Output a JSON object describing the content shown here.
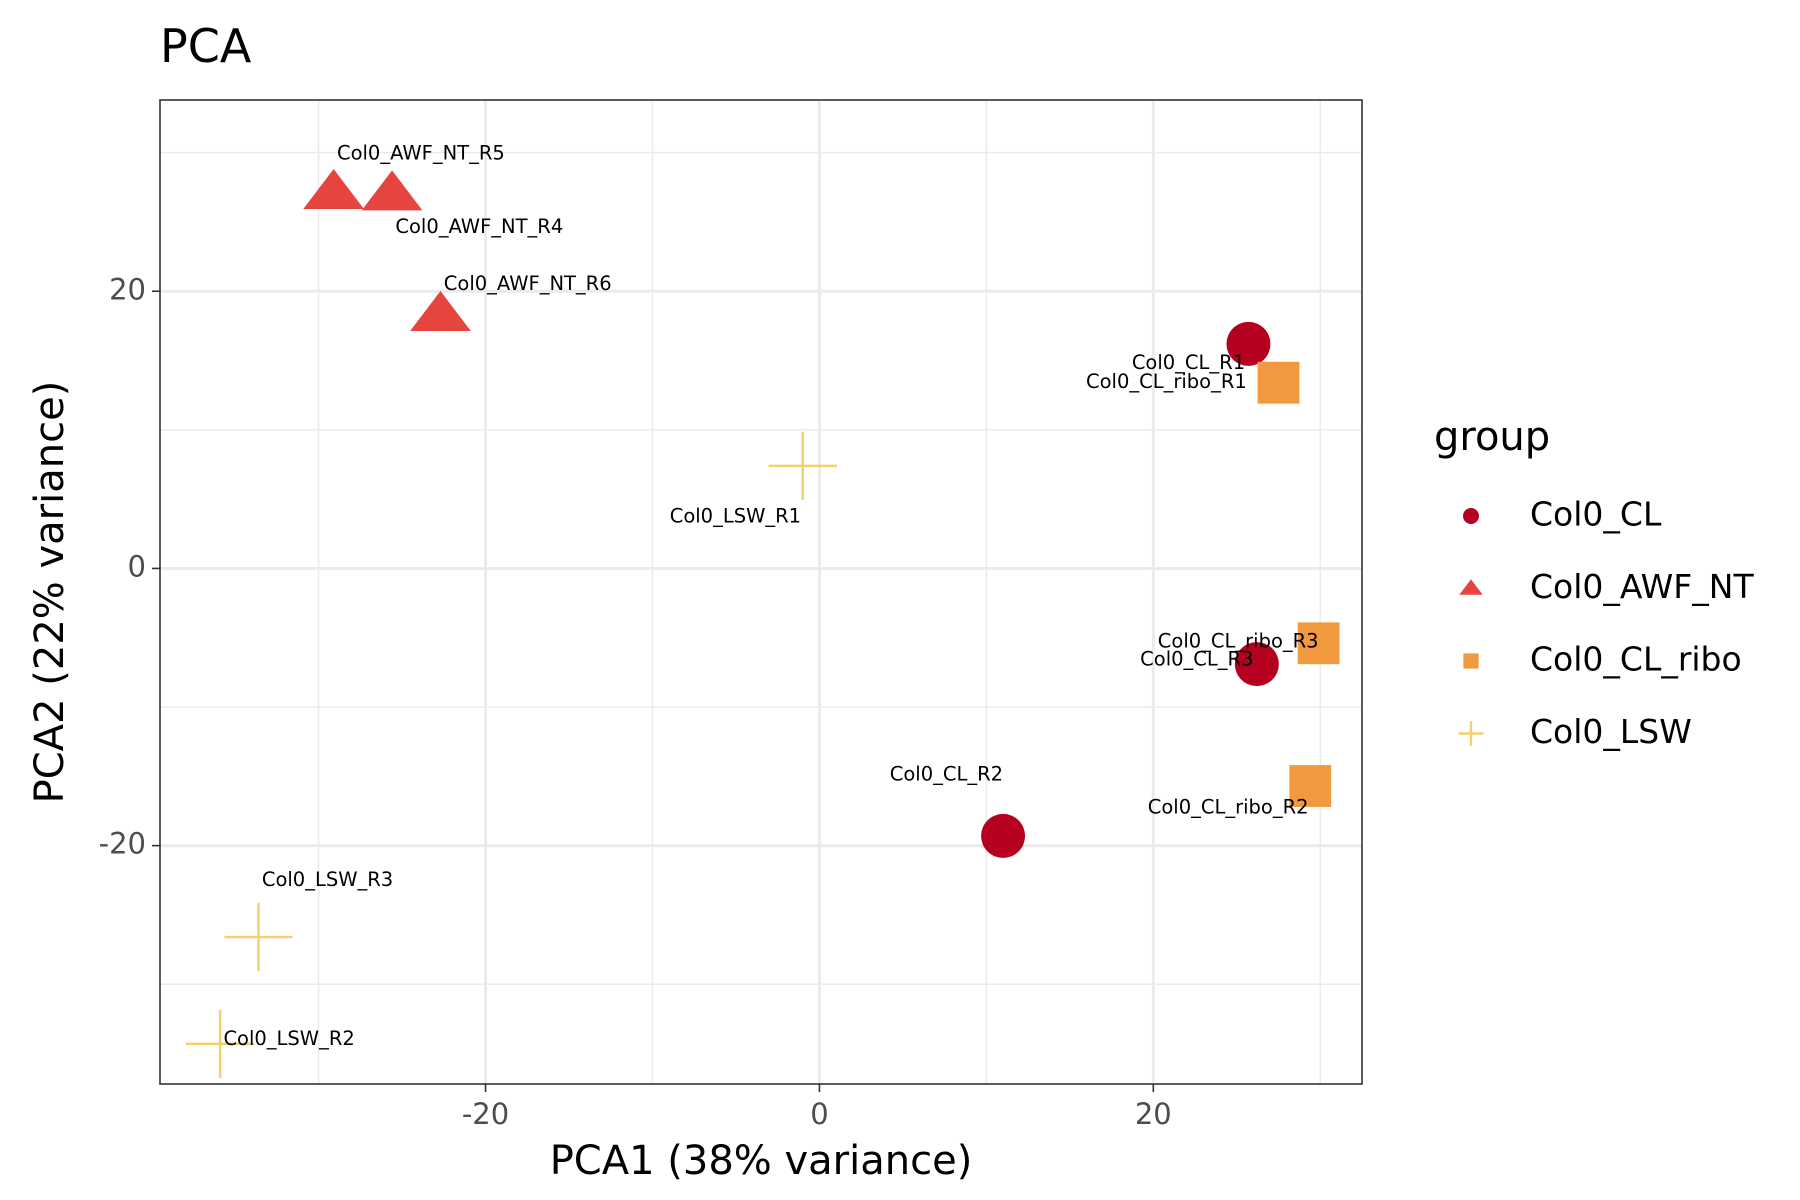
{
  "chart_data": {
    "type": "scatter",
    "title": "PCA",
    "xlabel": "PCA1 (38% variance)",
    "ylabel": "PCA2 (22% variance)",
    "xlim": [
      -39.5,
      32.5
    ],
    "ylim": [
      -37.2,
      33.8
    ],
    "x_ticks": [
      -20,
      0,
      20
    ],
    "y_ticks": [
      -20,
      0,
      20
    ],
    "x_minor_gridlines": [
      -30,
      -10,
      10,
      30
    ],
    "y_minor_gridlines": [
      -30,
      -10,
      10,
      30
    ],
    "grid": true,
    "legend": {
      "title": "group",
      "position": "right",
      "entries": [
        {
          "name": "Col0_CL",
          "shape": "circle",
          "color": "#b5001f"
        },
        {
          "name": "Col0_AWF_NT",
          "shape": "triangle",
          "color": "#e6453f"
        },
        {
          "name": "Col0_CL_ribo",
          "shape": "square",
          "color": "#f0993e"
        },
        {
          "name": "Col0_LSW",
          "shape": "plus",
          "color": "#f2d06b"
        }
      ]
    },
    "points": [
      {
        "label": "Col0_AWF_NT_R5",
        "group": "Col0_AWF_NT",
        "x": -29.1,
        "y": 27.1,
        "label_anchor": "start",
        "label_dx": 0.2,
        "label_dy": 2.8
      },
      {
        "label": "Col0_AWF_NT_R4",
        "group": "Col0_AWF_NT",
        "x": -25.6,
        "y": 27.0,
        "label_anchor": "start",
        "label_dx": 0.2,
        "label_dy": -2.4
      },
      {
        "label": "Col0_AWF_NT_R6",
        "group": "Col0_AWF_NT",
        "x": -22.7,
        "y": 18.3,
        "label_anchor": "start",
        "label_dx": 0.2,
        "label_dy": 2.2
      },
      {
        "label": "Col0_CL_R1",
        "group": "Col0_CL",
        "x": 25.7,
        "y": 16.2,
        "label_anchor": "end",
        "label_dx": -0.2,
        "label_dy": -1.4
      },
      {
        "label": "Col0_CL_ribo_R1",
        "group": "Col0_CL_ribo",
        "x": 27.5,
        "y": 13.4,
        "label_anchor": "end",
        "label_dx": -1.9,
        "label_dy": 0.0
      },
      {
        "label": "Col0_LSW_R1",
        "group": "Col0_LSW",
        "x": -1.0,
        "y": 7.4,
        "label_anchor": "end",
        "label_dx": -0.1,
        "label_dy": -3.7
      },
      {
        "label": "Col0_CL_ribo_R3",
        "group": "Col0_CL_ribo",
        "x": 29.9,
        "y": -5.4,
        "label_anchor": "end",
        "label_dx": 0.0,
        "label_dy": 0.1
      },
      {
        "label": "Col0_CL_R3",
        "group": "Col0_CL",
        "x": 26.2,
        "y": -6.9,
        "label_anchor": "end",
        "label_dx": -0.2,
        "label_dy": 0.3
      },
      {
        "label": "Col0_CL_R2",
        "group": "Col0_CL",
        "x": 11.0,
        "y": -19.3,
        "label_anchor": "end",
        "label_dx": 0.0,
        "label_dy": 4.4
      },
      {
        "label": "Col0_CL_ribo_R2",
        "group": "Col0_CL_ribo",
        "x": 29.4,
        "y": -15.7,
        "label_anchor": "end",
        "label_dx": -0.1,
        "label_dy": -1.6
      },
      {
        "label": "Col0_LSW_R3",
        "group": "Col0_LSW",
        "x": -33.6,
        "y": -26.6,
        "label_anchor": "start",
        "label_dx": 0.2,
        "label_dy": 4.1
      },
      {
        "label": "Col0_LSW_R2",
        "group": "Col0_LSW",
        "x": -35.9,
        "y": -34.3,
        "label_anchor": "start",
        "label_dx": 0.2,
        "label_dy": 0.3
      }
    ]
  }
}
